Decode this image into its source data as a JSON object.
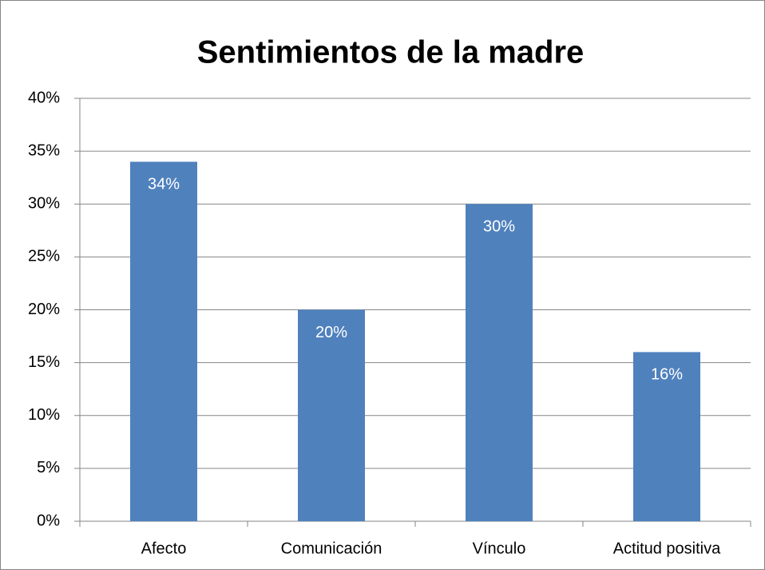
{
  "chart_data": {
    "type": "bar",
    "title": "Sentimientos de la madre",
    "categories": [
      "Afecto",
      "Comunicación",
      "Vínculo",
      "Actitud positiva"
    ],
    "values": [
      34,
      20,
      30,
      16
    ],
    "value_labels": [
      "34%",
      "20%",
      "30%",
      "16%"
    ],
    "color": "#4f81bd",
    "ylim": [
      0,
      40
    ],
    "yticks": [
      {
        "value": 0,
        "label": "0%"
      },
      {
        "value": 5,
        "label": "5%"
      },
      {
        "value": 10,
        "label": "10%"
      },
      {
        "value": 15,
        "label": "15%"
      },
      {
        "value": 20,
        "label": "20%"
      },
      {
        "value": 25,
        "label": "25%"
      },
      {
        "value": 30,
        "label": "30%"
      },
      {
        "value": 35,
        "label": "35%"
      },
      {
        "value": 40,
        "label": "40%"
      }
    ],
    "grid": true
  }
}
